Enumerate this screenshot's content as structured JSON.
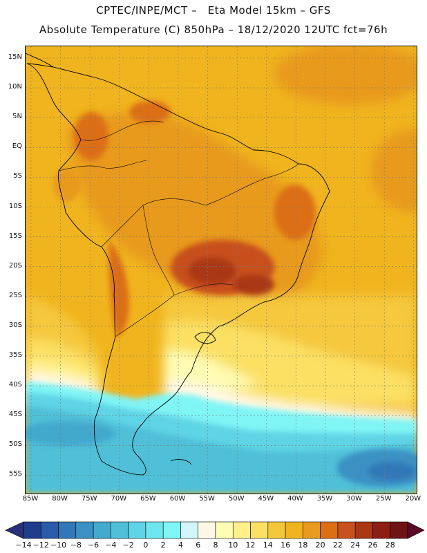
{
  "title_line1": "CPTEC/INPE/MCT –   Eta Model 15km – GFS",
  "title_line2": "Absolute Temperature (C) 850hPa – 18/12/2020 12UTC fct=76h",
  "lat_labels": [
    "15N",
    "10N",
    "5N",
    "EQ",
    "5S",
    "10S",
    "15S",
    "20S",
    "25S",
    "30S",
    "35S",
    "40S",
    "45S",
    "50S",
    "55S"
  ],
  "lon_labels": [
    "85W",
    "80W",
    "75W",
    "70W",
    "65W",
    "60W",
    "55W",
    "50W",
    "45W",
    "40W",
    "35W",
    "30W",
    "25W",
    "20W"
  ],
  "colorbar": {
    "labels": [
      "-14",
      "-12",
      "-10",
      "-8",
      "-6",
      "-4",
      "-2",
      "0",
      "2",
      "4",
      "6",
      "8",
      "10",
      "12",
      "14",
      "16",
      "18",
      "20",
      "22",
      "24",
      "26",
      "28"
    ],
    "colors": [
      "#1f3c8c",
      "#2a5aa8",
      "#3178b8",
      "#3b91c4",
      "#43a9cd",
      "#4fc0d8",
      "#5fd4e6",
      "#6ee6f0",
      "#80f5f5",
      "#d2f5fa",
      "#fff8e6",
      "#fffcb4",
      "#fff08c",
      "#fbe064",
      "#f5c83c",
      "#f0b41e",
      "#e89a1e",
      "#dc6e14",
      "#c8501e",
      "#aa3714",
      "#8c1e14",
      "#6e1414"
    ],
    "under_color": "#283278",
    "over_color": "#5a0a28"
  }
}
